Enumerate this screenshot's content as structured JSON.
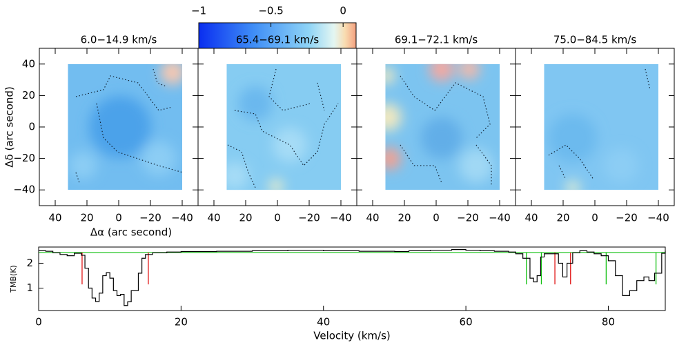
{
  "chart_data": [
    {
      "type": "colorbar",
      "xlim": [
        -1,
        0.09
      ],
      "xticks": [
        {
          "value": -1,
          "label": "−1"
        },
        {
          "value": -0.5,
          "label": "−0.5"
        },
        0
      ]
    },
    {
      "type": "heatmap",
      "title": "6.0−14.9 km/s",
      "xlabel": "Δα (arc second)",
      "ylabel": "Δδ (arc second)",
      "xlim": [
        50,
        -50
      ],
      "ylim": [
        -50,
        50
      ],
      "xticks": [
        40,
        20,
        0,
        {
          "value": -20,
          "label": "−20"
        },
        {
          "value": -40,
          "label": "−40"
        }
      ],
      "yticks": [
        40,
        20,
        0,
        {
          "value": -20,
          "label": "−20"
        },
        {
          "value": -40,
          "label": "−40"
        }
      ],
      "tick_color": "#2030e0"
    },
    {
      "type": "heatmap",
      "title": "65.4−69.1 km/s",
      "xlim": [
        50,
        -50
      ],
      "ylim": [
        -50,
        50
      ],
      "xticks": [
        40,
        20,
        0,
        {
          "value": -20,
          "label": "−20"
        },
        {
          "value": -40,
          "label": "−40"
        }
      ],
      "yticks": [
        40,
        20,
        0,
        -20,
        -40
      ]
    },
    {
      "type": "heatmap",
      "title": "69.1−72.1 km/s",
      "xlim": [
        50,
        -50
      ],
      "ylim": [
        -50,
        50
      ],
      "xticks": [
        40,
        20,
        0,
        {
          "value": -20,
          "label": "−20"
        },
        {
          "value": -40,
          "label": "−40"
        }
      ],
      "yticks": [
        40,
        20,
        0,
        -20,
        -40
      ]
    },
    {
      "type": "heatmap",
      "title": "75.0−84.5 km/s",
      "xlim": [
        50,
        -50
      ],
      "ylim": [
        -50,
        50
      ],
      "xticks": [
        40,
        20,
        0,
        {
          "value": -20,
          "label": "−20"
        },
        {
          "value": -40,
          "label": "−40"
        }
      ],
      "yticks": [
        40,
        20,
        0,
        -20,
        -40
      ]
    },
    {
      "type": "line",
      "xlabel": "Velocity (km/s)",
      "ylabel": "TMB(K)",
      "xlim": [
        0,
        88
      ],
      "ylim": [
        0.1,
        2.65
      ],
      "xticks": [
        0,
        20,
        40,
        60,
        80
      ],
      "yticks": [
        1,
        2
      ],
      "color": "#000000",
      "x": [
        0,
        1,
        2,
        3,
        4,
        5,
        6,
        6.5,
        7,
        7.5,
        8,
        8.5,
        9,
        9.5,
        10,
        10.5,
        11,
        11.5,
        12,
        12.5,
        13,
        14,
        14.5,
        15,
        16,
        18,
        20,
        25,
        30,
        35,
        40,
        45,
        50,
        52,
        55,
        58,
        60,
        62,
        64,
        66,
        67,
        68,
        69,
        69.5,
        70,
        70.5,
        71,
        72,
        73,
        73.6,
        74.2,
        75,
        76,
        77,
        78,
        79,
        80,
        81,
        82,
        83,
        84,
        85,
        85.7,
        86.5,
        87.5,
        88
      ],
      "values": [
        2.5,
        2.48,
        2.42,
        2.35,
        2.3,
        2.4,
        2.32,
        1.8,
        1.0,
        0.6,
        0.46,
        0.8,
        1.5,
        1.62,
        1.4,
        0.9,
        0.7,
        0.75,
        0.3,
        0.45,
        0.9,
        1.6,
        2.2,
        2.35,
        2.42,
        2.45,
        2.47,
        2.48,
        2.5,
        2.52,
        2.5,
        2.48,
        2.47,
        2.5,
        2.52,
        2.55,
        2.52,
        2.5,
        2.48,
        2.45,
        2.38,
        2.2,
        1.4,
        1.25,
        1.5,
        2.25,
        2.38,
        2.38,
        2.0,
        1.45,
        2.0,
        2.42,
        2.5,
        2.45,
        2.38,
        2.3,
        2.1,
        1.5,
        0.7,
        0.9,
        1.3,
        1.45,
        1.3,
        1.6,
        2.4,
        2.5
      ],
      "baseline": 2.43,
      "marker_bottom": 1.15,
      "markers": [
        {
          "color": "#e01010",
          "x": [
            6.1,
            15.4
          ]
        },
        {
          "color": "#10c010",
          "x": [
            68.5,
            70.6
          ]
        },
        {
          "color": "#e01010",
          "x": [
            72.5,
            74.7
          ]
        },
        {
          "color": "#10c010",
          "x": [
            79.7,
            86.7
          ]
        }
      ],
      "baseline_color": "#10c010"
    }
  ]
}
